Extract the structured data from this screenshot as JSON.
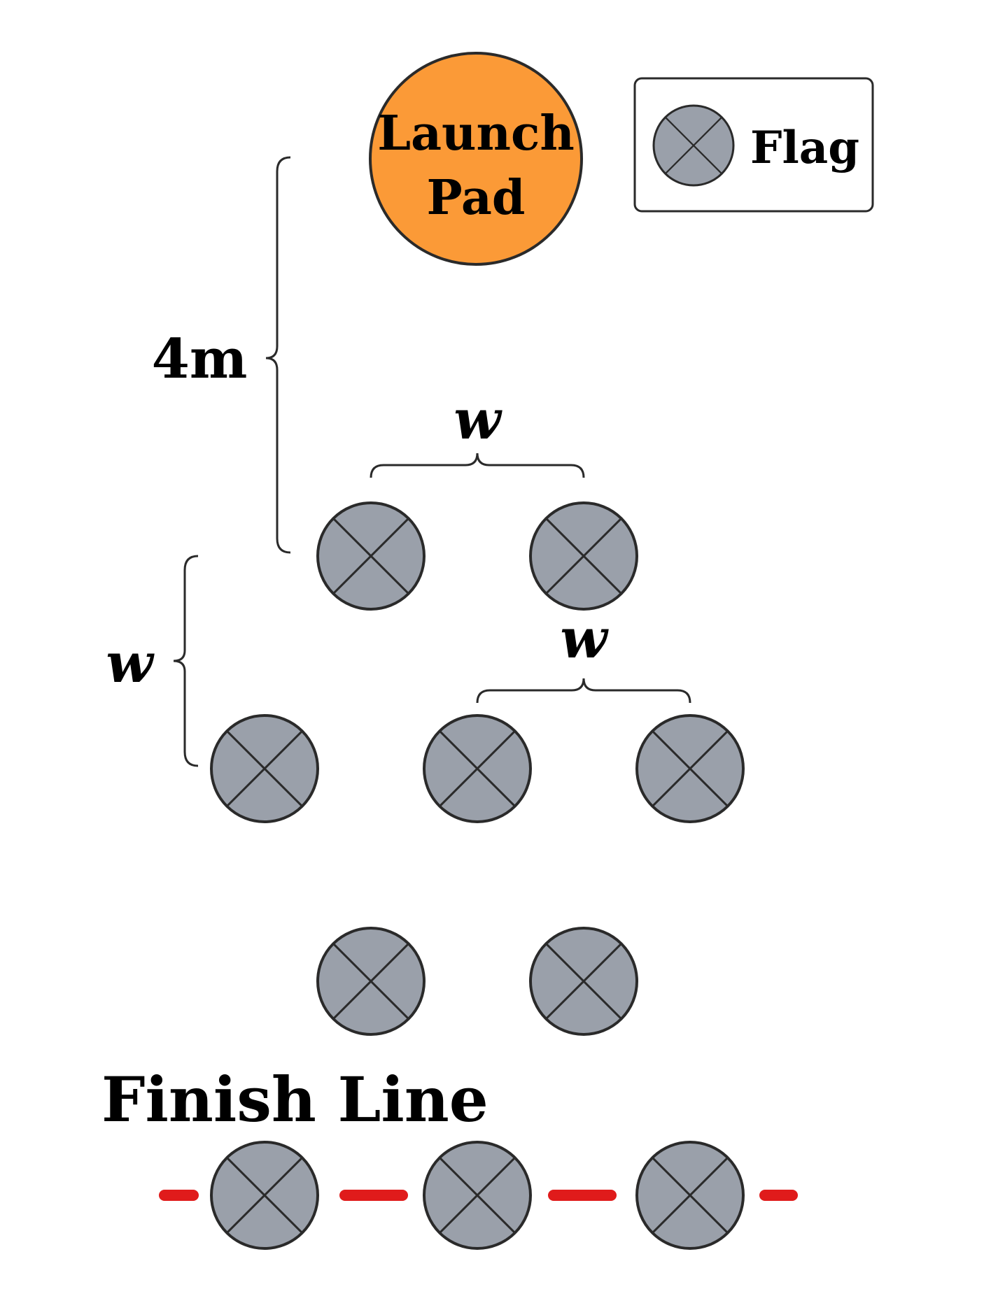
{
  "launch_pad": {
    "label_line1": "Launch",
    "label_line2": "Pad",
    "color": "#fb9a37"
  },
  "legend": {
    "label": "Flag",
    "icon": "flag-marker-icon"
  },
  "dimensions": {
    "vertical_launch": "4m",
    "vertical_rows": "w",
    "horizontal_top": "w",
    "horizontal_middle": "w"
  },
  "finish": {
    "label": "Finish Line",
    "line_color": "#e01b1b"
  },
  "colors": {
    "flag_fill": "#9aa0aa",
    "flag_stroke": "#2a2a2a"
  }
}
